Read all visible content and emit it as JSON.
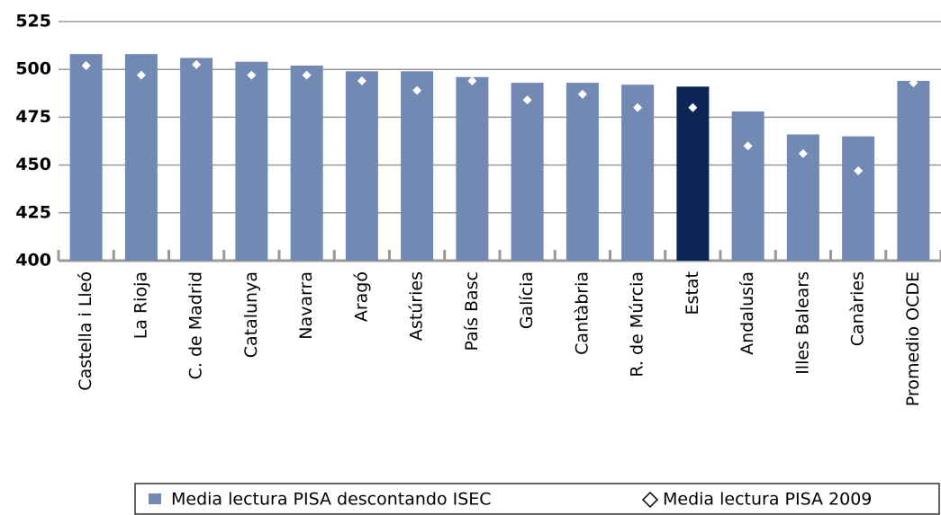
{
  "chart_data": {
    "type": "bar",
    "categories": [
      "Castella i Lleó",
      "La Rioja",
      "C. de Madrid",
      "Catalunya",
      "Navarra",
      "Aragó",
      "Astúries",
      "País Basc",
      "Galícia",
      "Cantàbria",
      "R. de Múrcia",
      "Estat",
      "Andalusía",
      "Illes Balears",
      "Canàries",
      "Promedio OCDE"
    ],
    "series": [
      {
        "name": "Media lectura PISA descontando ISEC",
        "type": "bar",
        "color": "#7289b4",
        "colors": [
          "#7289b4",
          "#7289b4",
          "#7289b4",
          "#7289b4",
          "#7289b4",
          "#7289b4",
          "#7289b4",
          "#7289b4",
          "#7289b4",
          "#7289b4",
          "#7289b4",
          "#0c2554",
          "#7289b4",
          "#7289b4",
          "#7289b4",
          "#7289b4"
        ],
        "values": [
          508,
          508,
          506,
          504,
          502,
          499,
          499,
          496,
          493,
          493,
          492,
          491,
          478,
          466,
          465,
          494
        ]
      },
      {
        "name": "Media lectura PISA 2009",
        "type": "marker",
        "color": "#ffffff",
        "values": [
          502,
          497,
          502.5,
          497,
          497,
          494,
          489,
          494,
          484,
          487,
          480,
          480,
          460,
          456,
          447,
          493
        ]
      }
    ],
    "ylim": [
      400,
      525
    ],
    "yticks": [
      400,
      425,
      450,
      475,
      500,
      525
    ],
    "grid": true
  }
}
